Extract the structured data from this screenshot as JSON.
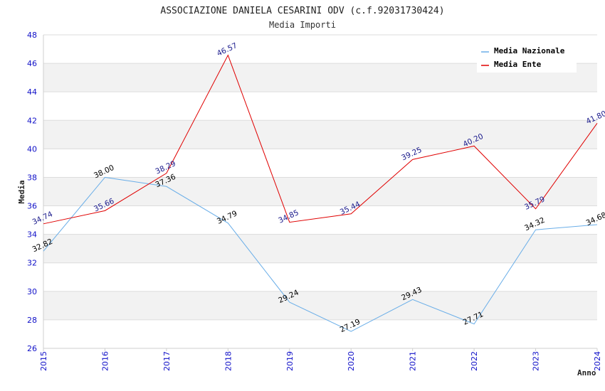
{
  "chart_data": {
    "type": "line",
    "title": "ASSOCIAZIONE DANIELA CESARINI ODV (c.f.92031730424)",
    "subtitle": "Media Importi",
    "xlabel": "Anno",
    "ylabel": "Media",
    "ylim": [
      26,
      48
    ],
    "yticks": [
      "26",
      "28",
      "30",
      "32",
      "34",
      "36",
      "38",
      "40",
      "42",
      "44",
      "46",
      "48"
    ],
    "categories": [
      "2015",
      "2016",
      "2017",
      "2018",
      "2019",
      "2020",
      "2021",
      "2022",
      "2023",
      "2024"
    ],
    "legend_position": "top-right",
    "grid": true,
    "series": [
      {
        "name": "Media Nazionale",
        "color": "#6aaee8",
        "label_color": "#000000",
        "values": [
          32.82,
          38.0,
          37.36,
          34.79,
          29.24,
          27.19,
          29.43,
          27.71,
          34.32,
          34.68
        ],
        "labels": [
          "32.82",
          "38.00",
          "37.36",
          "34.79",
          "29.24",
          "27.19",
          "29.43",
          "27.71",
          "34.32",
          "34.68"
        ]
      },
      {
        "name": "Media Ente",
        "color": "#e00000",
        "label_color": "#1a1a8c",
        "values": [
          34.74,
          35.66,
          38.29,
          46.57,
          34.85,
          35.44,
          39.25,
          40.2,
          35.79,
          41.8
        ],
        "labels": [
          "34.74",
          "35.66",
          "38.29",
          "46.57",
          "34.85",
          "35.44",
          "39.25",
          "40.20",
          "35.79",
          "41.80"
        ]
      }
    ]
  }
}
